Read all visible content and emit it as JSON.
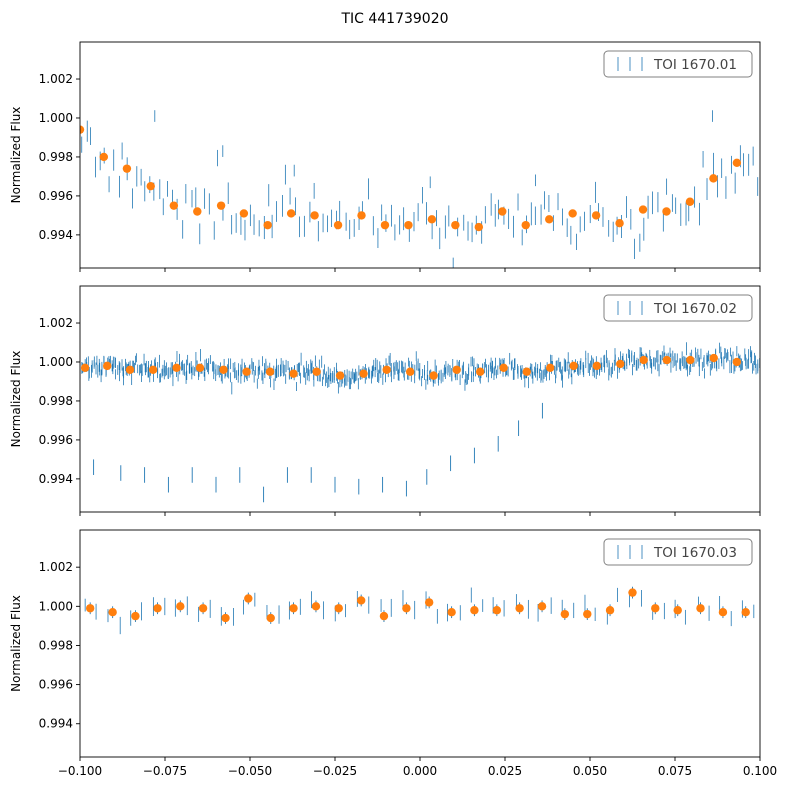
{
  "figure": {
    "title": "TIC 441739020"
  },
  "colors": {
    "errorbar": "#1f77b4",
    "binned": "#ff7f0e",
    "axis": "#000000",
    "legend_border": "#808080",
    "legend_text": "#444444"
  },
  "chart_data": [
    {
      "type": "scatter",
      "title": "",
      "xlabel": "",
      "ylabel": "Normalized Flux",
      "legend": "TOI 1670.01",
      "legend_position": "top-right",
      "xlim": [
        -0.1,
        0.1
      ],
      "ylim": [
        0.9923,
        1.0039
      ],
      "x_ticks": [
        -0.1,
        -0.075,
        -0.05,
        -0.025,
        0.0,
        0.025,
        0.05,
        0.075,
        0.1
      ],
      "x_tick_labels": [],
      "y_ticks": [
        0.994,
        0.996,
        0.998,
        1.0,
        1.002
      ],
      "y_tick_labels": [
        "0.994",
        "0.996",
        "0.998",
        "1.000",
        "1.002"
      ],
      "raw": {
        "n": 150,
        "seed": 11,
        "err": 0.0005,
        "scatter": 0.0007,
        "outliers": [
          [
            -0.078,
            1.0001
          ],
          [
            -0.058,
            0.9983
          ],
          [
            -0.037,
            0.9973
          ],
          [
            0.003,
            0.9967
          ],
          [
            0.034,
            0.9968
          ],
          [
            0.086,
            1.0001
          ]
        ]
      },
      "binned": {
        "x": [
          -0.1,
          -0.093,
          -0.0862,
          -0.0792,
          -0.0724,
          -0.0655,
          -0.0585,
          -0.0518,
          -0.0448,
          -0.0379,
          -0.031,
          -0.0241,
          -0.0172,
          -0.0103,
          -0.0034,
          0.0035,
          0.0104,
          0.0173,
          0.0242,
          0.0311,
          0.038,
          0.0449,
          0.0518,
          0.0587,
          0.0656,
          0.0725,
          0.0794,
          0.0863,
          0.0932
        ],
        "y": [
          0.9994,
          0.998,
          0.9974,
          0.9965,
          0.9955,
          0.9952,
          0.9955,
          0.9951,
          0.9945,
          0.9951,
          0.995,
          0.9945,
          0.995,
          0.9945,
          0.9945,
          0.9948,
          0.9945,
          0.9944,
          0.9952,
          0.9945,
          0.9948,
          0.9951,
          0.995,
          0.9946,
          0.9953,
          0.9952,
          0.9957,
          0.9969,
          0.9977
        ]
      }
    },
    {
      "type": "scatter",
      "title": "",
      "xlabel": "",
      "ylabel": "Normalized Flux",
      "legend": "TOI 1670.02",
      "legend_position": "top-right",
      "xlim": [
        -0.1,
        0.1
      ],
      "ylim": [
        0.9923,
        1.0039
      ],
      "x_ticks": [
        -0.1,
        -0.075,
        -0.05,
        -0.025,
        0.0,
        0.025,
        0.05,
        0.075,
        0.1
      ],
      "x_tick_labels": [],
      "y_ticks": [
        0.994,
        0.996,
        0.998,
        1.0,
        1.002
      ],
      "y_tick_labels": [
        "0.994",
        "0.996",
        "0.998",
        "1.000",
        "1.002"
      ],
      "raw": {
        "n": 700,
        "seed": 23,
        "err": 0.00028,
        "scatter": 0.00025,
        "outliers": []
      },
      "transit": {
        "x": [
          -0.096,
          -0.088,
          -0.081,
          -0.074,
          -0.067,
          -0.06,
          -0.053,
          -0.046,
          -0.039,
          -0.032,
          -0.025,
          -0.018,
          -0.011,
          -0.004,
          0.002,
          0.009,
          0.016,
          0.023,
          0.029,
          0.036
        ],
        "y": [
          0.9946,
          0.9943,
          0.9942,
          0.9937,
          0.9942,
          0.9937,
          0.9942,
          0.9932,
          0.9942,
          0.9942,
          0.9937,
          0.9936,
          0.9937,
          0.9935,
          0.9941,
          0.9948,
          0.9952,
          0.9958,
          0.9966,
          0.9975
        ],
        "err": 0.0004
      },
      "binned": {
        "x": [
          -0.0985,
          -0.092,
          -0.0853,
          -0.0785,
          -0.0716,
          -0.0647,
          -0.0578,
          -0.051,
          -0.0441,
          -0.0372,
          -0.0304,
          -0.0235,
          -0.0166,
          -0.0098,
          -0.0029,
          0.004,
          0.0108,
          0.0177,
          0.0246,
          0.0314,
          0.0383,
          0.0452,
          0.052,
          0.0589,
          0.0658,
          0.0726,
          0.0795,
          0.0864,
          0.0932
        ],
        "y": [
          0.9997,
          0.9998,
          0.9996,
          0.9996,
          0.9997,
          0.9997,
          0.9996,
          0.9995,
          0.9995,
          0.9994,
          0.9995,
          0.9993,
          0.9994,
          0.9996,
          0.9995,
          0.9993,
          0.9996,
          0.9995,
          0.9997,
          0.9995,
          0.9997,
          0.9998,
          0.9998,
          0.9999,
          1.0001,
          1.0001,
          1.0001,
          1.0002,
          1.0
        ]
      }
    },
    {
      "type": "scatter",
      "title": "",
      "xlabel": "",
      "ylabel": "Normalized Flux",
      "legend": "TOI 1670.03",
      "legend_position": "top-right",
      "xlim": [
        -0.1,
        0.1
      ],
      "ylim": [
        0.9923,
        1.0039
      ],
      "x_ticks": [
        -0.1,
        -0.075,
        -0.05,
        -0.025,
        0.0,
        0.025,
        0.05,
        0.075,
        0.1
      ],
      "x_tick_labels": [
        "−0.100",
        "−0.075",
        "−0.050",
        "−0.025",
        "0.000",
        "0.025",
        "0.050",
        "0.075",
        "0.100"
      ],
      "y_ticks": [
        0.994,
        0.996,
        0.998,
        1.0,
        1.002
      ],
      "y_tick_labels": [
        "0.994",
        "0.996",
        "0.998",
        "1.000",
        "1.002"
      ],
      "raw": {
        "n": 60,
        "seed": 37,
        "err": 0.0004,
        "scatter": 0.0003,
        "outliers": []
      },
      "binned": {
        "x": [
          -0.097,
          -0.0904,
          -0.0837,
          -0.0772,
          -0.0705,
          -0.0638,
          -0.0572,
          -0.0505,
          -0.0439,
          -0.0372,
          -0.0306,
          -0.0239,
          -0.0173,
          -0.0106,
          -0.004,
          0.0027,
          0.0093,
          0.016,
          0.0226,
          0.0293,
          0.0359,
          0.0426,
          0.0492,
          0.0559,
          0.0625,
          0.0692,
          0.0758,
          0.0825,
          0.0891,
          0.0958
        ],
        "y": [
          0.9999,
          0.9997,
          0.9995,
          0.9999,
          1.0,
          0.9999,
          0.9994,
          1.0004,
          0.9994,
          0.9999,
          1.0,
          0.9999,
          1.0003,
          0.9995,
          0.9999,
          1.0002,
          0.9997,
          0.9998,
          0.9998,
          0.9999,
          1.0,
          0.9996,
          0.9996,
          0.9998,
          1.0007,
          0.9999,
          0.9998,
          0.9999,
          0.9997,
          0.9997
        ]
      },
      "binned_err": 0.0003
    }
  ]
}
